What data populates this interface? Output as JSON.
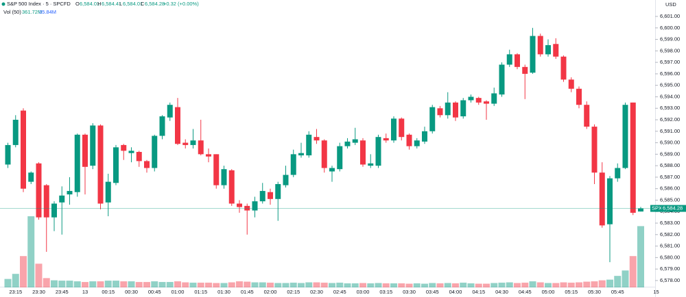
{
  "chart_data": {
    "type": "candlestick",
    "title": "S&P 500 Index · 5 · SPCFD",
    "ohlc_legend": {
      "o": "O",
      "open": "6,584.01",
      "h": "H",
      "high": "6,584.41",
      "l": "L",
      "low": "6,584.01",
      "c": "C",
      "close": "6,584.28",
      "change": "+0.32 (+0.00%)"
    },
    "volume_legend": {
      "label": "Vol (50)",
      "value": "361.72M",
      "ma": "35.84M"
    },
    "currency": "USD",
    "price_tag": {
      "symbol": "SPX",
      "label": "6,584.28"
    },
    "up_color": "#089981",
    "down_color": "#f23645",
    "categories": [
      null,
      "23:15",
      null,
      null,
      "23:30",
      null,
      null,
      "23:45",
      null,
      null,
      "13",
      null,
      null,
      "00:15",
      null,
      null,
      "00:30",
      null,
      null,
      "00:45",
      null,
      null,
      "01:00",
      null,
      null,
      "01:15",
      null,
      null,
      "01:30",
      null,
      null,
      "01:45",
      null,
      null,
      "02:00",
      null,
      null,
      "02:15",
      null,
      null,
      "02:30",
      null,
      null,
      "02:45",
      null,
      null,
      "03:00",
      null,
      null,
      "03:15",
      null,
      null,
      "03:30",
      null,
      null,
      "03:45",
      null,
      null,
      "04:00",
      null,
      null,
      "04:15",
      null,
      null,
      "04:30",
      null,
      null,
      "04:45",
      null,
      null,
      "05:00",
      null,
      null,
      "05:15",
      null,
      null,
      "05:30",
      null,
      null,
      "05:45",
      null,
      null,
      null,
      null,
      "15"
    ],
    "open": [
      6588.1,
      6589.8,
      6592.8,
      6586.6,
      6588.2,
      6586.3,
      6583.5,
      6584.8,
      6585.5,
      6585.7,
      6590.7,
      6588.0,
      6591.5,
      6584.8,
      6586.5,
      6589.8,
      6589.1,
      6589.2,
      6588.4,
      6587.8,
      6590.6,
      6592.2,
      6593.1,
      6590.0,
      6589.8,
      6590.2,
      6589.0,
      6589.0,
      6586.3,
      6587.6,
      6584.7,
      6584.5,
      6584.1,
      6584.9,
      6585.7,
      6585.1,
      6586.3,
      6587.2,
      6588.9,
      6588.9,
      6590.5,
      6590.2,
      6587.5,
      6587.7,
      6589.7,
      6590.0,
      6590.2,
      6588.0,
      6588.0,
      6590.4,
      6590.2,
      6592.1,
      6590.7,
      6589.7,
      6590.1,
      6591.0,
      6593.0,
      6592.4,
      6593.5,
      6592.3,
      6593.7,
      6593.9,
      6593.6,
      6593.4,
      6594.2,
      6596.8,
      6597.7,
      6596.6,
      6596.1,
      6599.3,
      6597.7,
      6598.6,
      6597.5,
      6595.5,
      6594.7,
      6593.3,
      6591.4,
      6587.4,
      6582.9,
      6586.9,
      6587.8,
      6593.5,
      6584.01,
      null,
      null
    ],
    "high": [
      6590.0,
      6592.4,
      6593.0,
      6587.5,
      6588.3,
      6586.4,
      6584.9,
      6586.2,
      6587.0,
      6590.8,
      6590.8,
      6591.7,
      6591.6,
      6587.3,
      6589.8,
      6589.9,
      6589.6,
      6589.3,
      6588.5,
      6590.7,
      6592.4,
      6593.5,
      6593.9,
      6590.3,
      6591.2,
      6592.0,
      6589.5,
      6589.0,
      6588.0,
      6587.7,
      6585.0,
      6584.7,
      6585.3,
      6586.5,
      6586.0,
      6586.6,
      6588.0,
      6589.4,
      6590.0,
      6591.0,
      6591.2,
      6590.3,
      6588.0,
      6590.0,
      6590.4,
      6591.3,
      6590.4,
      6589.0,
      6590.7,
      6590.8,
      6592.3,
      6592.2,
      6590.8,
      6590.4,
      6591.4,
      6593.3,
      6593.2,
      6594.4,
      6593.6,
      6593.9,
      6594.2,
      6594.0,
      6593.7,
      6594.8,
      6597.0,
      6598.1,
      6597.8,
      6596.8,
      6600.0,
      6599.5,
      6599.0,
      6599.1,
      6597.6,
      6595.7,
      6594.9,
      6593.6,
      6591.6,
      6588.3,
      6587.1,
      6588.2,
      6593.5,
      6593.5,
      6584.41,
      null,
      null
    ],
    "low": [
      6587.8,
      6589.6,
      6585.7,
      6586.4,
      6583.3,
      6580.5,
      6582.3,
      6582.0,
      6584.6,
      6585.3,
      6585.5,
      6587.7,
      6584.2,
      6583.6,
      6586.3,
      6588.5,
      6588.3,
      6587.9,
      6587.4,
      6587.5,
      6590.3,
      6591.9,
      6589.8,
      6589.5,
      6589.5,
      6588.9,
      6588.3,
      6586.0,
      6586.0,
      6584.5,
      6583.9,
      6582.0,
      6583.5,
      6584.7,
      6584.6,
      6583.2,
      6586.1,
      6587.0,
      6588.7,
      6588.7,
      6589.9,
      6587.4,
      6586.6,
      6587.5,
      6589.5,
      6589.8,
      6587.9,
      6587.8,
      6587.8,
      6590.0,
      6590.0,
      6590.2,
      6589.4,
      6589.5,
      6589.9,
      6590.8,
      6592.2,
      6592.1,
      6591.9,
      6592.1,
      6593.5,
      6593.3,
      6592.0,
      6593.2,
      6594.0,
      6596.6,
      6596.4,
      6593.8,
      6596.0,
      6597.5,
      6597.5,
      6597.3,
      6595.3,
      6594.4,
      6593.0,
      6591.2,
      6586.4,
      6582.6,
      6579.6,
      6586.6,
      6587.7,
      6583.7,
      6584.01,
      null,
      null
    ],
    "close": [
      6589.8,
      6592.0,
      6586.0,
      6587.4,
      6583.5,
      6583.5,
      6584.7,
      6585.4,
      6585.8,
      6590.7,
      6587.9,
      6591.5,
      6584.7,
      6586.6,
      6589.6,
      6589.3,
      6589.3,
      6588.4,
      6587.8,
      6590.6,
      6592.3,
      6593.3,
      6589.9,
      6589.8,
      6590.2,
      6589.0,
      6588.8,
      6586.3,
      6587.7,
      6584.7,
      6584.4,
      6584.1,
      6584.9,
      6585.8,
      6585.1,
      6586.4,
      6587.2,
      6589.0,
      6589.1,
      6590.7,
      6590.2,
      6587.8,
      6587.8,
      6589.7,
      6590.1,
      6590.3,
      6588.1,
      6588.2,
      6590.5,
      6590.2,
      6592.1,
      6590.5,
      6589.7,
      6590.2,
      6591.0,
      6593.1,
      6592.4,
      6593.5,
      6592.2,
      6593.7,
      6594.0,
      6593.5,
      6593.4,
      6594.3,
      6596.8,
      6597.7,
      6596.6,
      6596.0,
      6599.3,
      6597.7,
      6598.5,
      6597.5,
      6595.5,
      6594.7,
      6593.3,
      6591.4,
      6587.4,
      6582.8,
      6586.9,
      6587.8,
      6593.3,
      6583.9,
      6584.28,
      null,
      null
    ],
    "volume": [
      50,
      80,
      185,
      420,
      140,
      55,
      42,
      40,
      40,
      36,
      32,
      36,
      36,
      40,
      40,
      36,
      36,
      32,
      32,
      36,
      32,
      32,
      36,
      30,
      28,
      28,
      28,
      26,
      26,
      30,
      36,
      34,
      30,
      30,
      28,
      26,
      26,
      28,
      26,
      30,
      30,
      28,
      26,
      28,
      24,
      24,
      26,
      24,
      26,
      24,
      24,
      24,
      22,
      24,
      22,
      26,
      24,
      26,
      24,
      28,
      24,
      22,
      22,
      26,
      28,
      30,
      26,
      28,
      36,
      30,
      26,
      26,
      30,
      28,
      30,
      34,
      36,
      42,
      46,
      68,
      100,
      185,
      361.72,
      null,
      null
    ],
    "ylim": [
      6577.4,
      6602.43
    ],
    "yticks": [
      {
        "value": 6578,
        "label": "6,578.00"
      },
      {
        "value": 6579,
        "label": "6,579.00"
      },
      {
        "value": 6580,
        "label": "6,580.00"
      },
      {
        "value": 6581,
        "label": "6,581.00"
      },
      {
        "value": 6582,
        "label": "6,582.00"
      },
      {
        "value": 6583,
        "label": "6,583.00"
      },
      {
        "value": 6584,
        "label": "6,584.00"
      },
      {
        "value": 6585,
        "label": "6,585.00"
      },
      {
        "value": 6586,
        "label": "6,586.00"
      },
      {
        "value": 6587,
        "label": "6,587.00"
      },
      {
        "value": 6588,
        "label": "6,588.00"
      },
      {
        "value": 6589,
        "label": "6,589.00"
      },
      {
        "value": 6590,
        "label": "6,590.00"
      },
      {
        "value": 6591,
        "label": "6,591.00"
      },
      {
        "value": 6592,
        "label": "6,592.00"
      },
      {
        "value": 6593,
        "label": "6,593.00"
      },
      {
        "value": 6594,
        "label": "6,594.00"
      },
      {
        "value": 6595,
        "label": "6,595.00"
      },
      {
        "value": 6596,
        "label": "6,596.00"
      },
      {
        "value": 6597,
        "label": "6,597.00"
      },
      {
        "value": 6598,
        "label": "6,598.00"
      },
      {
        "value": 6599,
        "label": "6,599.00"
      },
      {
        "value": 6600,
        "label": "6,600.00"
      },
      {
        "value": 6601,
        "label": "6,601.00"
      }
    ],
    "grid": false
  }
}
